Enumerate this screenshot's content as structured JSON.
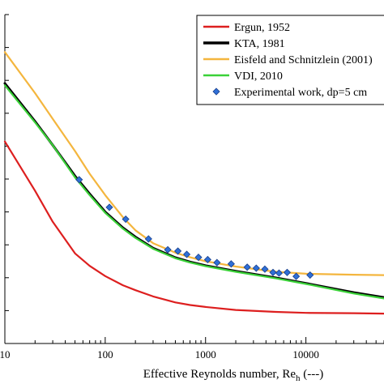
{
  "chart_data": {
    "type": "line",
    "xlabel": "Effective Reynolds number, Re",
    "xlabel_sub": "h",
    "xlabel_suffix": " (---)",
    "x_scale": "log",
    "xlim": [
      10,
      60000
    ],
    "ylim": [
      0,
      1
    ],
    "x_ticks": [
      {
        "value": 10,
        "label": "10"
      },
      {
        "value": 100,
        "label": "100"
      },
      {
        "value": 1000,
        "label": "1000"
      },
      {
        "value": 10000,
        "label": "10000"
      }
    ],
    "legend_position": "top-right",
    "series": [
      {
        "name": "Ergun, 1952",
        "color": "#dd1f1f",
        "kind": "line",
        "x": [
          10,
          20,
          30,
          50,
          70,
          100,
          150,
          200,
          300,
          500,
          700,
          1000,
          2000,
          5000,
          10000,
          30000,
          60000
        ],
        "y": [
          0.614,
          0.464,
          0.37,
          0.274,
          0.236,
          0.205,
          0.177,
          0.162,
          0.143,
          0.125,
          0.117,
          0.111,
          0.102,
          0.096,
          0.093,
          0.092,
          0.091
        ]
      },
      {
        "name": "KTA, 1981",
        "color": "#000000",
        "kind": "line",
        "x": [
          10,
          20,
          30,
          50,
          70,
          100,
          150,
          200,
          300,
          500,
          700,
          1000,
          2000,
          5000,
          10000,
          30000,
          60000
        ],
        "y": [
          0.791,
          0.675,
          0.603,
          0.509,
          0.455,
          0.4,
          0.352,
          0.324,
          0.29,
          0.261,
          0.248,
          0.237,
          0.22,
          0.2,
          0.183,
          0.155,
          0.14
        ]
      },
      {
        "name": "Eisfeld and Schnitzlein (2001)",
        "color": "#f4b63e",
        "kind": "line",
        "x": [
          10,
          20,
          30,
          50,
          70,
          100,
          150,
          200,
          300,
          500,
          700,
          1000,
          2000,
          5000,
          10000,
          30000,
          60000
        ],
        "y": [
          0.886,
          0.761,
          0.683,
          0.585,
          0.516,
          0.451,
          0.384,
          0.344,
          0.305,
          0.276,
          0.262,
          0.25,
          0.234,
          0.218,
          0.212,
          0.209,
          0.208
        ]
      },
      {
        "name": "VDI, 2010",
        "color": "#3ad138",
        "kind": "line",
        "x": [
          10,
          20,
          30,
          50,
          70,
          100,
          150,
          200,
          300,
          500,
          700,
          1000,
          2000,
          5000,
          10000,
          30000,
          60000
        ],
        "y": [
          0.785,
          0.672,
          0.603,
          0.505,
          0.451,
          0.397,
          0.349,
          0.321,
          0.288,
          0.259,
          0.246,
          0.235,
          0.218,
          0.198,
          0.181,
          0.152,
          0.137
        ]
      },
      {
        "name": "Experimental work, dp=5 cm",
        "color": "#2f6fd6",
        "kind": "marker",
        "x": [
          55,
          110,
          160,
          270,
          420,
          530,
          650,
          850,
          1050,
          1300,
          1800,
          2600,
          3200,
          3900,
          4700,
          5400,
          6500,
          8000,
          11000
        ],
        "y": [
          0.498,
          0.414,
          0.378,
          0.318,
          0.285,
          0.281,
          0.271,
          0.262,
          0.255,
          0.246,
          0.242,
          0.232,
          0.229,
          0.226,
          0.216,
          0.214,
          0.216,
          0.204,
          0.208
        ]
      }
    ]
  }
}
